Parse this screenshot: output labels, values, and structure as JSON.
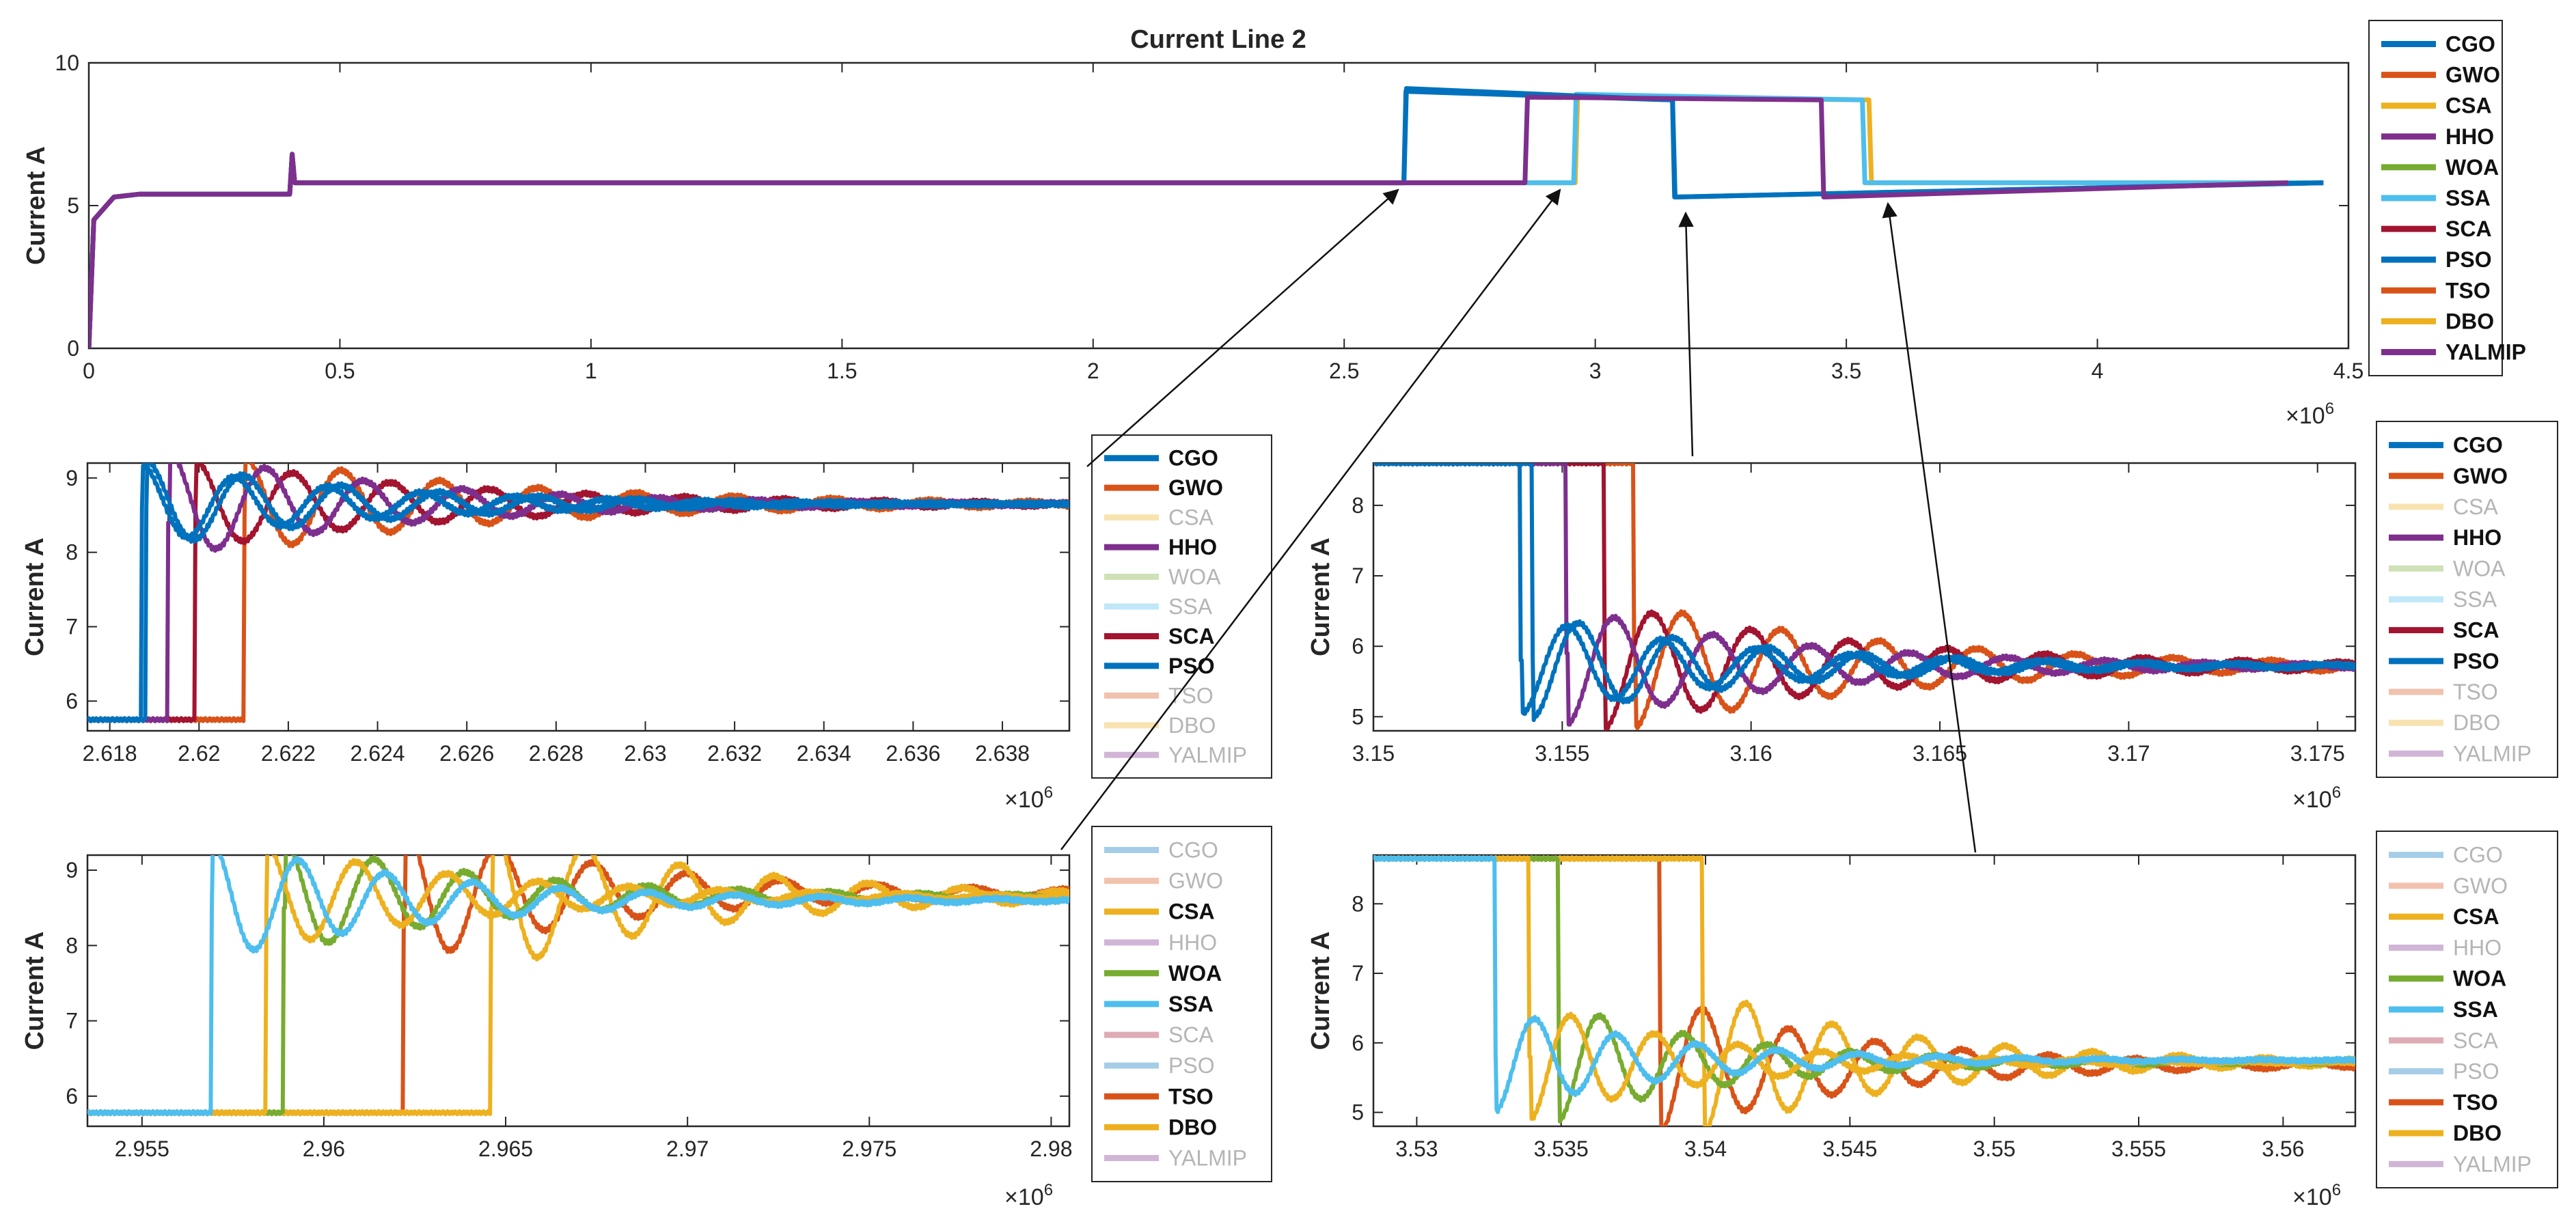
{
  "figure": {
    "exp_label": "×10",
    "exp_power": "6"
  },
  "chart_data": [
    {
      "id": "main",
      "type": "line",
      "title": "Current Line 2",
      "xlabel": "",
      "ylabel": "Current A",
      "xlim": [
        0,
        4.5
      ],
      "ylim": [
        0,
        10
      ],
      "xticks": [
        0,
        0.5,
        1,
        1.5,
        2,
        2.5,
        3,
        3.5,
        4,
        4.5
      ],
      "xtick_labels": [
        "0",
        "0.5",
        "1",
        "1.5",
        "2",
        "2.5",
        "3",
        "3.5",
        "4",
        "4.5"
      ],
      "yticks": [
        0,
        5,
        10
      ],
      "ytick_labels": [
        "0",
        "5",
        "10"
      ],
      "x_multiplier": "×10^6",
      "legend_position": "outside right",
      "legend": [
        "CGO",
        "GWO",
        "CSA",
        "HHO",
        "WOA",
        "SSA",
        "SCA",
        "PSO",
        "TSO",
        "DBO",
        "YALMIP"
      ],
      "faded": [],
      "series": [
        {
          "name": "CSA",
          "x": [
            0,
            0.01,
            0.05,
            0.1,
            0.4,
            0.405,
            0.41,
            2.96,
            2.965,
            3.545,
            3.55,
            4.45
          ],
          "y": [
            0,
            4.5,
            5.3,
            5.4,
            5.4,
            6.8,
            5.8,
            5.8,
            8.8,
            8.7,
            5.8,
            5.8
          ]
        },
        {
          "name": "SSA",
          "x": [
            0,
            0.01,
            0.05,
            0.1,
            0.4,
            0.405,
            0.41,
            2.957,
            2.962,
            3.532,
            3.537,
            4.45
          ],
          "y": [
            0,
            4.5,
            5.3,
            5.4,
            5.4,
            6.8,
            5.8,
            5.8,
            8.9,
            8.7,
            5.8,
            5.8
          ]
        },
        {
          "name": "CGO",
          "x": [
            0,
            0.01,
            0.05,
            0.1,
            0.4,
            0.405,
            0.41,
            2.619,
            2.624,
            3.154,
            3.159,
            4.45
          ],
          "y": [
            0,
            4.5,
            5.3,
            5.4,
            5.4,
            6.8,
            5.8,
            5.8,
            9.1,
            8.7,
            5.3,
            5.8
          ]
        },
        {
          "name": "PSO",
          "x": [
            0,
            0.01,
            0.05,
            0.1,
            0.4,
            0.405,
            0.41,
            2.6187,
            2.623,
            3.1538,
            3.158,
            4.45
          ],
          "y": [
            0,
            4.5,
            5.3,
            5.4,
            5.4,
            6.8,
            5.8,
            5.8,
            9.0,
            8.7,
            5.3,
            5.8
          ]
        },
        {
          "name": "HHO",
          "x": [
            0,
            0.01,
            0.05,
            0.1,
            0.4,
            0.405,
            0.41,
            2.86,
            2.865,
            3.45,
            3.455,
            4.38
          ],
          "y": [
            0,
            4.5,
            5.3,
            5.4,
            5.4,
            6.8,
            5.8,
            5.8,
            8.8,
            8.7,
            5.3,
            5.8
          ]
        }
      ]
    },
    {
      "id": "z1",
      "type": "line",
      "title": "",
      "ylabel": "Current A",
      "xlim": [
        2.6175,
        2.6395
      ],
      "ylim": [
        5.6,
        9.2
      ],
      "xticks": [
        2.618,
        2.62,
        2.622,
        2.624,
        2.626,
        2.628,
        2.63,
        2.632,
        2.634,
        2.636,
        2.638
      ],
      "xtick_labels": [
        "2.618",
        "2.62",
        "2.622",
        "2.624",
        "2.626",
        "2.628",
        "2.63",
        "2.632",
        "2.634",
        "2.636",
        "2.638"
      ],
      "yticks": [
        6,
        7,
        8,
        9
      ],
      "ytick_labels": [
        "6",
        "7",
        "8",
        "9"
      ],
      "x_multiplier": "×10^6",
      "legend_position": "outside right",
      "legend": [
        "CGO",
        "GWO",
        "CSA",
        "HHO",
        "WOA",
        "SSA",
        "SCA",
        "PSO",
        "TSO",
        "DBO",
        "YALMIP"
      ],
      "faded": [
        "CSA",
        "WOA",
        "SSA",
        "TSO",
        "DBO",
        "YALMIP"
      ],
      "series": [
        {
          "name": "GWO",
          "step": 2.621,
          "pre": 5.75,
          "peak": 8.5,
          "final": 8.65,
          "amp": 0.65,
          "period": 0.0022,
          "decay": 0.006
        },
        {
          "name": "SCA",
          "step": 2.6199,
          "pre": 5.75,
          "peak": 8.6,
          "final": 8.65,
          "amp": 0.6,
          "period": 0.0022,
          "decay": 0.006
        },
        {
          "name": "HHO",
          "step": 2.6193,
          "pre": 5.75,
          "peak": 8.4,
          "final": 8.65,
          "amp": 0.75,
          "period": 0.0022,
          "decay": 0.005
        },
        {
          "name": "CGO",
          "step": 2.6188,
          "pre": 5.75,
          "peak": 8.6,
          "final": 8.65,
          "amp": 0.6,
          "period": 0.0022,
          "decay": 0.005
        },
        {
          "name": "PSO",
          "step": 2.6187,
          "pre": 5.75,
          "peak": 8.6,
          "final": 8.65,
          "amp": 0.55,
          "period": 0.0021,
          "decay": 0.005
        }
      ]
    },
    {
      "id": "z2",
      "type": "line",
      "title": "",
      "ylabel": "Current A",
      "xlim": [
        3.15,
        3.176
      ],
      "ylim": [
        4.8,
        8.6
      ],
      "xticks": [
        3.15,
        3.155,
        3.16,
        3.165,
        3.17,
        3.175
      ],
      "xtick_labels": [
        "3.15",
        "3.155",
        "3.16",
        "3.165",
        "3.17",
        "3.175"
      ],
      "yticks": [
        5,
        6,
        7,
        8
      ],
      "ytick_labels": [
        "5",
        "6",
        "7",
        "8"
      ],
      "x_multiplier": "×10^6",
      "legend_position": "outside right",
      "legend": [
        "CGO",
        "GWO",
        "CSA",
        "HHO",
        "WOA",
        "SSA",
        "SCA",
        "PSO",
        "TSO",
        "DBO",
        "YALMIP"
      ],
      "faded": [
        "CSA",
        "WOA",
        "SSA",
        "TSO",
        "DBO",
        "YALMIP"
      ],
      "series": [
        {
          "name": "GWO",
          "step": 3.1569,
          "pre": 8.6,
          "peak": 5.9,
          "final": 5.72,
          "amp": 0.9,
          "period": 0.0026,
          "decay": 0.007
        },
        {
          "name": "SCA",
          "step": 3.1561,
          "pre": 8.6,
          "peak": 5.8,
          "final": 5.72,
          "amp": 0.9,
          "period": 0.0026,
          "decay": 0.007
        },
        {
          "name": "HHO",
          "step": 3.1551,
          "pre": 8.6,
          "peak": 5.9,
          "final": 5.72,
          "amp": 0.85,
          "period": 0.0026,
          "decay": 0.006
        },
        {
          "name": "CGO",
          "step": 3.1542,
          "pre": 8.6,
          "peak": 5.85,
          "final": 5.72,
          "amp": 0.75,
          "period": 0.0025,
          "decay": 0.006
        },
        {
          "name": "PSO",
          "step": 3.1539,
          "pre": 8.6,
          "peak": 5.8,
          "final": 5.72,
          "amp": 0.7,
          "period": 0.0025,
          "decay": 0.006
        }
      ]
    },
    {
      "id": "z3",
      "type": "line",
      "title": "",
      "ylabel": "Current A",
      "xlim": [
        2.9535,
        2.9805
      ],
      "ylim": [
        5.6,
        9.2
      ],
      "xticks": [
        2.955,
        2.96,
        2.965,
        2.97,
        2.975,
        2.98
      ],
      "xtick_labels": [
        "2.955",
        "2.96",
        "2.965",
        "2.97",
        "2.975",
        "2.98"
      ],
      "yticks": [
        6,
        7,
        8,
        9
      ],
      "ytick_labels": [
        "6",
        "7",
        "8",
        "9"
      ],
      "x_multiplier": "×10^6",
      "legend_position": "outside right",
      "legend": [
        "CGO",
        "GWO",
        "CSA",
        "HHO",
        "WOA",
        "SSA",
        "SCA",
        "PSO",
        "TSO",
        "DBO",
        "YALMIP"
      ],
      "faded": [
        "CGO",
        "GWO",
        "HHO",
        "SCA",
        "PSO",
        "YALMIP"
      ],
      "series": [
        {
          "name": "TSO",
          "step": 2.9622,
          "pre": 5.78,
          "peak": 8.5,
          "final": 8.7,
          "amp": 0.95,
          "period": 0.0026,
          "decay": 0.006
        },
        {
          "name": "DBO",
          "step": 2.9646,
          "pre": 5.78,
          "peak": 8.5,
          "final": 8.65,
          "amp": 1.0,
          "period": 0.0026,
          "decay": 0.006
        },
        {
          "name": "WOA",
          "step": 2.9589,
          "pre": 5.78,
          "peak": 8.5,
          "final": 8.65,
          "amp": 0.75,
          "period": 0.0025,
          "decay": 0.006
        },
        {
          "name": "CSA",
          "step": 2.9584,
          "pre": 5.78,
          "peak": 8.5,
          "final": 8.65,
          "amp": 0.7,
          "period": 0.0025,
          "decay": 0.006
        },
        {
          "name": "SSA",
          "step": 2.9569,
          "pre": 5.78,
          "peak": 8.5,
          "final": 8.6,
          "amp": 0.8,
          "period": 0.0024,
          "decay": 0.006
        }
      ]
    },
    {
      "id": "z4",
      "type": "line",
      "title": "",
      "ylabel": "Current A",
      "xlim": [
        3.5285,
        3.5625
      ],
      "ylim": [
        4.8,
        8.7
      ],
      "xticks": [
        3.53,
        3.535,
        3.54,
        3.545,
        3.55,
        3.555,
        3.56
      ],
      "xtick_labels": [
        "3.53",
        "3.535",
        "3.54",
        "3.545",
        "3.55",
        "3.555",
        "3.56"
      ],
      "yticks": [
        5,
        6,
        7,
        8
      ],
      "ytick_labels": [
        "5",
        "6",
        "7",
        "8"
      ],
      "x_multiplier": "×10^6",
      "legend_position": "outside right",
      "legend": [
        "CGO",
        "GWO",
        "CSA",
        "HHO",
        "WOA",
        "SSA",
        "SCA",
        "PSO",
        "TSO",
        "DBO",
        "YALMIP"
      ],
      "faded": [
        "CGO",
        "GWO",
        "HHO",
        "SCA",
        "PSO",
        "YALMIP"
      ],
      "series": [
        {
          "name": "TSO",
          "step": 3.5384,
          "pre": 8.65,
          "peak": 5.8,
          "final": 5.68,
          "amp": 1.0,
          "period": 0.003,
          "decay": 0.007
        },
        {
          "name": "DBO",
          "step": 3.5399,
          "pre": 8.65,
          "peak": 5.9,
          "final": 5.72,
          "amp": 1.05,
          "period": 0.003,
          "decay": 0.007
        },
        {
          "name": "WOA",
          "step": 3.5349,
          "pre": 8.65,
          "peak": 5.9,
          "final": 5.72,
          "amp": 0.85,
          "period": 0.0029,
          "decay": 0.006
        },
        {
          "name": "CSA",
          "step": 3.5339,
          "pre": 8.65,
          "peak": 5.8,
          "final": 5.72,
          "amp": 0.85,
          "period": 0.0029,
          "decay": 0.006
        },
        {
          "name": "SSA",
          "step": 3.5327,
          "pre": 8.65,
          "peak": 5.85,
          "final": 5.75,
          "amp": 0.75,
          "period": 0.0028,
          "decay": 0.006
        }
      ]
    }
  ],
  "colors": {
    "CGO": "#0072BD",
    "GWO": "#D95319",
    "CSA": "#EDB120",
    "HHO": "#7E2F8E",
    "WOA": "#77AC30",
    "SSA": "#4DBEEE",
    "SCA": "#A2142F",
    "PSO": "#0072BD",
    "TSO": "#D95319",
    "DBO": "#EDB120",
    "YALMIP": "#7E2F8E"
  }
}
